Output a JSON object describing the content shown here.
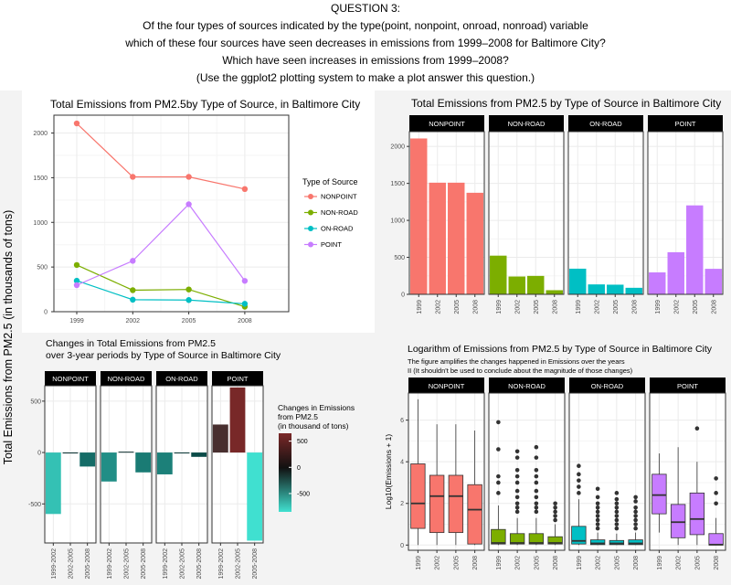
{
  "question": {
    "lines": [
      "QUESTION 3:",
      "Of the four types of sources indicated by the type(point, nonpoint, onroad, nonroad) variable",
      "which of these four sources have seen decreases in emissions from 1999–2008 for Baltimore City?",
      "Which have seen increases in emissions from 1999–2008?",
      "(Use the ggplot2 plotting system to make a plot answer this question.)"
    ]
  },
  "global_ylabel": "Total Emissions from PM2.5 (in thousands of tons)",
  "colors": {
    "NONPOINT": "#F8766D",
    "NON-ROAD": "#7CAE00",
    "ON-ROAD": "#00BFC4",
    "POINT": "#C77CFF"
  },
  "chart_data": [
    {
      "id": "line",
      "type": "line",
      "title": "Total Emissions from PM2.5by Type of Source, in Baltimore City",
      "x": [
        "1999",
        "2002",
        "2005",
        "2008"
      ],
      "ylim": [
        0,
        2200
      ],
      "yticks": [
        0,
        500,
        1000,
        1500,
        2000
      ],
      "legend_title": "Type of Source",
      "series": [
        {
          "name": "NONPOINT",
          "values": [
            2107.6,
            1509.5,
            1509.5,
            1373.2
          ]
        },
        {
          "name": "NON-ROAD",
          "values": [
            522.9,
            240.8,
            248.9,
            55.8
          ]
        },
        {
          "name": "ON-ROAD",
          "values": [
            346.8,
            134.3,
            130.4,
            88.3
          ]
        },
        {
          "name": "POINT",
          "values": [
            296.8,
            569.3,
            1202.5,
            344.98
          ]
        }
      ]
    },
    {
      "id": "facetbar",
      "type": "bar",
      "title": "Total Emissions from PM2.5 by Type of Source in Baltimore City",
      "categories": [
        "1999",
        "2002",
        "2005",
        "2008"
      ],
      "ylim": [
        0,
        2200
      ],
      "yticks": [
        0,
        500,
        1000,
        1500,
        2000
      ],
      "series": [
        {
          "name": "NONPOINT",
          "values": [
            2107.6,
            1509.5,
            1509.5,
            1373.2
          ]
        },
        {
          "name": "NON-ROAD",
          "values": [
            522.9,
            240.8,
            248.9,
            55.8
          ]
        },
        {
          "name": "ON-ROAD",
          "values": [
            346.8,
            134.3,
            130.4,
            88.3
          ]
        },
        {
          "name": "POINT",
          "values": [
            296.8,
            569.3,
            1202.5,
            344.98
          ]
        }
      ]
    },
    {
      "id": "change",
      "type": "bar",
      "title_lines": [
        "Changes in Total Emissions from PM2.5",
        "over 3-year periods by Type of Source in Baltimore City"
      ],
      "categories": [
        "1999-2002",
        "2002-2005",
        "2005-2008"
      ],
      "ylim": [
        -880,
        650
      ],
      "yticks": [
        -500,
        0,
        500
      ],
      "legend_title_lines": [
        "Changes in Emissions",
        "from PM2.5",
        "(in thousand of tons)"
      ],
      "legend_ticks": [
        500,
        0,
        -500
      ],
      "legend_range": [
        -850,
        650
      ],
      "series": [
        {
          "name": "NONPOINT",
          "values": [
            -598.1,
            0,
            -136.3
          ]
        },
        {
          "name": "NON-ROAD",
          "values": [
            -282.1,
            8.1,
            -193.1
          ]
        },
        {
          "name": "ON-ROAD",
          "values": [
            -212.5,
            -3.9,
            -42.1
          ]
        },
        {
          "name": "POINT",
          "values": [
            272.5,
            633.2,
            -857.5
          ]
        }
      ]
    },
    {
      "id": "box",
      "type": "box",
      "title": "Logarithm of Emissions from PM2.5 by Type of Source in Baltimore City",
      "subtitle_lines": [
        "The figure amplifies the changes happened  in Emissions over the years",
        " II (It shouldn't be used to conclude about the magnitude of those changes)"
      ],
      "ylabel": "Log10(Emissions + 1)",
      "categories": [
        "1999",
        "2002",
        "2005",
        "2008"
      ],
      "ylim": [
        -0.25,
        7.3
      ],
      "yticks": [
        0,
        2,
        4,
        6
      ],
      "series": [
        {
          "name": "NONPOINT",
          "boxes": [
            {
              "lo": 0.0,
              "q1": 0.8,
              "med": 2.0,
              "q3": 3.9,
              "hi": 7.0,
              "out": []
            },
            {
              "lo": 0.0,
              "q1": 0.6,
              "med": 2.35,
              "q3": 3.35,
              "hi": 5.8,
              "out": []
            },
            {
              "lo": 0.0,
              "q1": 0.6,
              "med": 2.35,
              "q3": 3.35,
              "hi": 5.8,
              "out": []
            },
            {
              "lo": 0.0,
              "q1": 0.05,
              "med": 1.7,
              "q3": 2.9,
              "hi": 5.5,
              "out": []
            }
          ]
        },
        {
          "name": "NON-ROAD",
          "boxes": [
            {
              "lo": 0.0,
              "q1": 0.05,
              "med": 0.1,
              "q3": 0.75,
              "hi": 1.9,
              "out": [
                2.5,
                3.0,
                3.3,
                4.6,
                5.9
              ]
            },
            {
              "lo": 0.0,
              "q1": 0.05,
              "med": 0.1,
              "q3": 0.55,
              "hi": 1.3,
              "out": [
                1.6,
                1.8,
                2.0,
                2.3,
                2.6,
                3.0,
                3.3,
                3.6,
                4.2,
                4.5
              ]
            },
            {
              "lo": 0.0,
              "q1": 0.05,
              "med": 0.1,
              "q3": 0.55,
              "hi": 1.3,
              "out": [
                1.6,
                1.8,
                2.0,
                2.3,
                2.6,
                3.0,
                3.3,
                3.6,
                4.2,
                4.7
              ]
            },
            {
              "lo": 0.0,
              "q1": 0.05,
              "med": 0.1,
              "q3": 0.4,
              "hi": 1.0,
              "out": [
                1.2,
                1.4,
                1.6,
                1.8,
                2.0
              ]
            }
          ]
        },
        {
          "name": "ON-ROAD",
          "boxes": [
            {
              "lo": 0.0,
              "q1": 0.05,
              "med": 0.2,
              "q3": 0.9,
              "hi": 2.2,
              "out": [
                2.5,
                2.8,
                3.1,
                3.4,
                3.8
              ]
            },
            {
              "lo": 0.0,
              "q1": 0.02,
              "med": 0.08,
              "q3": 0.25,
              "hi": 0.6,
              "out": [
                0.8,
                1.0,
                1.2,
                1.4,
                1.6,
                1.8,
                2.0,
                2.3,
                2.7
              ]
            },
            {
              "lo": 0.0,
              "q1": 0.02,
              "med": 0.08,
              "q3": 0.22,
              "hi": 0.55,
              "out": [
                0.8,
                1.0,
                1.2,
                1.4,
                1.6,
                1.8,
                2.0,
                2.2,
                2.5
              ]
            },
            {
              "lo": 0.0,
              "q1": 0.02,
              "med": 0.08,
              "q3": 0.25,
              "hi": 0.6,
              "out": [
                0.8,
                1.0,
                1.2,
                1.4,
                1.6,
                1.8,
                2.1,
                2.3
              ]
            }
          ]
        },
        {
          "name": "POINT",
          "boxes": [
            {
              "lo": 0.6,
              "q1": 1.5,
              "med": 2.4,
              "q3": 3.4,
              "hi": 4.4,
              "out": []
            },
            {
              "lo": 0.0,
              "q1": 0.35,
              "med": 1.1,
              "q3": 1.95,
              "hi": 4.7,
              "out": []
            },
            {
              "lo": 0.0,
              "q1": 0.5,
              "med": 1.25,
              "q3": 2.5,
              "hi": 4.0,
              "out": [
                5.6
              ]
            },
            {
              "lo": 0.0,
              "q1": 0.0,
              "med": 0.02,
              "q3": 0.55,
              "hi": 1.3,
              "out": [
                2.0,
                2.5,
                3.2
              ]
            }
          ]
        }
      ]
    }
  ]
}
